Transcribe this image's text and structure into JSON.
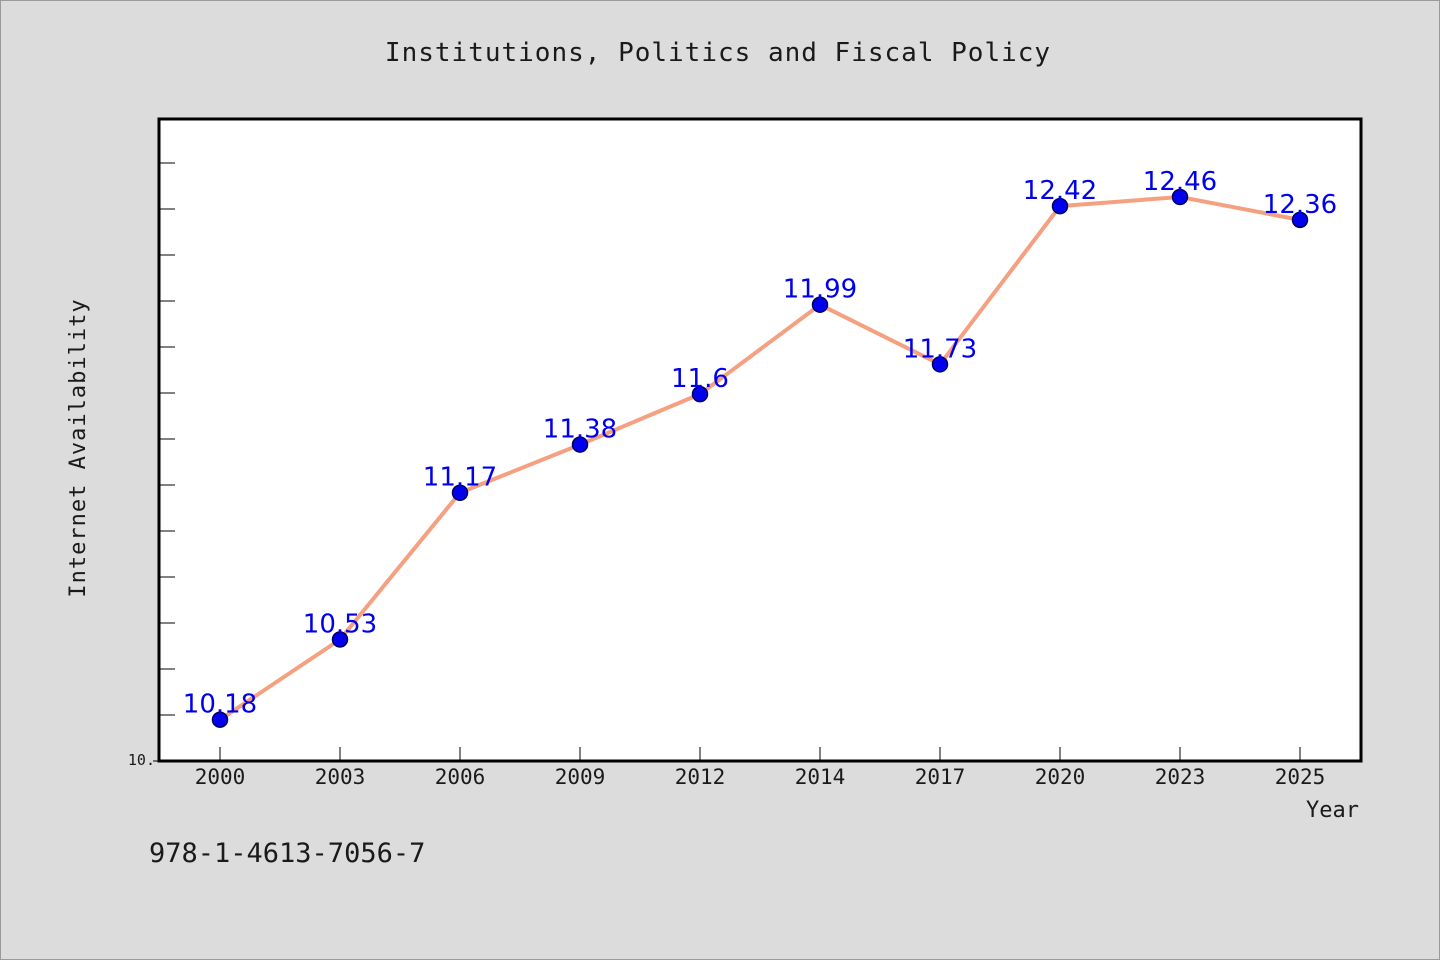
{
  "figure": {
    "footer_text": "978-1-4613-7056-7"
  },
  "chart_data": {
    "type": "line",
    "title": "Institutions, Politics and Fiscal Policy",
    "xlabel": "Year",
    "ylabel": "Internet Availability",
    "categories": [
      "2000",
      "2003",
      "2006",
      "2009",
      "2012",
      "2014",
      "2017",
      "2020",
      "2023",
      "2025"
    ],
    "values": [
      10.18,
      10.53,
      11.17,
      11.38,
      11.6,
      11.99,
      11.73,
      12.42,
      12.46,
      12.36
    ],
    "point_labels": [
      "10.18",
      "10.53",
      "11.17",
      "11.38",
      "11.6",
      "11.99",
      "11.73",
      "12.42",
      "12.46",
      "12.36"
    ],
    "ylim": [
      10.0,
      12.8
    ],
    "y_tick_labels": [
      "10."
    ],
    "grid": false,
    "legend": "none",
    "colors": {
      "line": "#f5a080",
      "marker": "#0000ee",
      "marker_edge": "#00005a",
      "point_label": "#0000ee",
      "text": "#1a1a1a",
      "background": "#dcdcdc",
      "plot_background": "#ffffff"
    }
  }
}
